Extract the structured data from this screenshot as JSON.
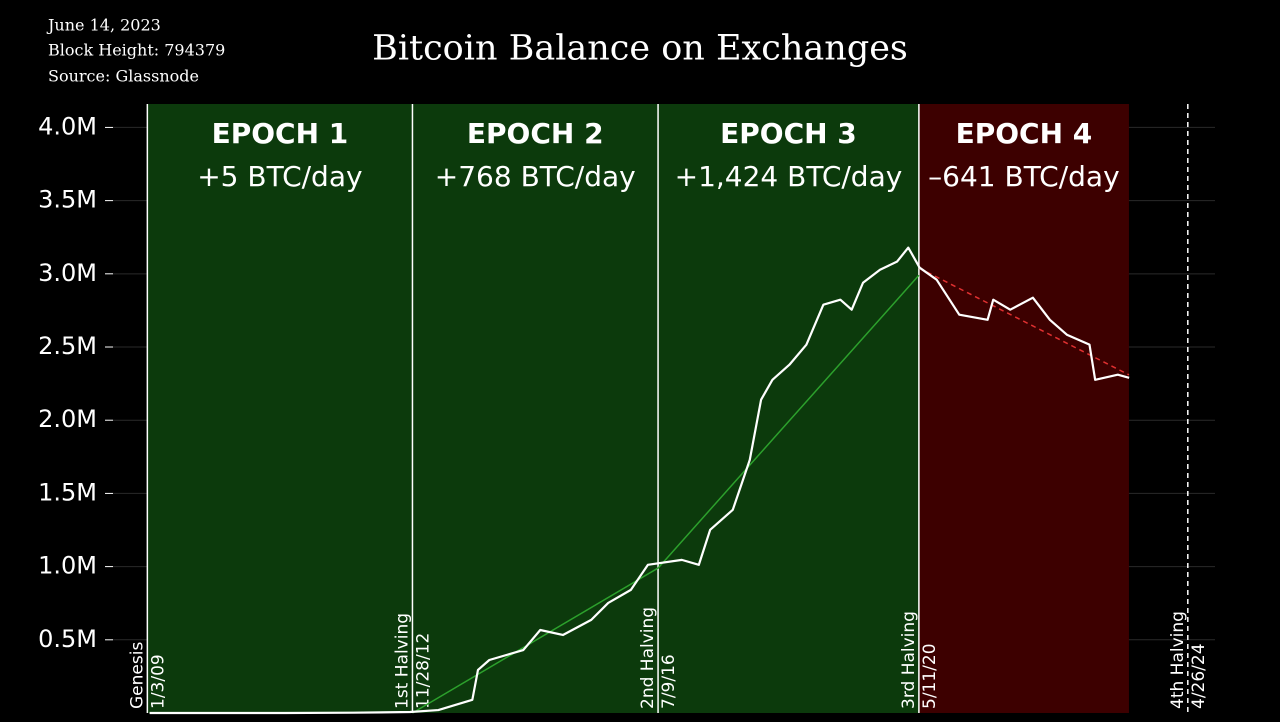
{
  "chart_data": {
    "type": "line",
    "title": "Bitcoin Balance on Exchanges",
    "notes": [
      "June 14, 2023",
      "Block Height: 794379",
      "Source: Glassnode"
    ],
    "xlim": [
      "2008-07-01",
      "2024-09-20"
    ],
    "ylim": [
      0,
      4160000
    ],
    "yticks": [
      {
        "value": 500000,
        "label": "0.5M"
      },
      {
        "value": 1000000,
        "label": "1.0M"
      },
      {
        "value": 1500000,
        "label": "1.5M"
      },
      {
        "value": 2000000,
        "label": "2.0M"
      },
      {
        "value": 2500000,
        "label": "2.5M"
      },
      {
        "value": 3000000,
        "label": "3.0M"
      },
      {
        "value": 3500000,
        "label": "3.5M"
      },
      {
        "value": 4000000,
        "label": "4.0M"
      }
    ],
    "grid": true,
    "epochs": [
      {
        "label": "EPOCH 1",
        "rate": "+5 BTC/day",
        "start": "2009-01-03",
        "end": "2012-11-28",
        "color": "#0c3a0c"
      },
      {
        "label": "EPOCH 2",
        "rate": "+768 BTC/day",
        "start": "2012-11-28",
        "end": "2016-07-09",
        "color": "#0c3a0c"
      },
      {
        "label": "EPOCH 3",
        "rate": "+1,424 BTC/day",
        "start": "2016-07-09",
        "end": "2020-05-11",
        "color": "#0c3a0c"
      },
      {
        "label": "EPOCH 4",
        "rate": "–641 BTC/day",
        "start": "2020-05-11",
        "end": "2023-06-14",
        "color": "#3d0000"
      }
    ],
    "events": [
      {
        "name": "Genesis",
        "date_label": "1/3/09",
        "date": "2009-01-03",
        "line_style": "solid"
      },
      {
        "name": "1st Halving",
        "date_label": "11/28/12",
        "date": "2012-11-28",
        "line_style": "solid"
      },
      {
        "name": "2nd Halving",
        "date_label": "7/9/16",
        "date": "2016-07-09",
        "line_style": "solid"
      },
      {
        "name": "3rd Halving",
        "date_label": "5/11/20",
        "date": "2020-05-11",
        "line_style": "solid"
      },
      {
        "name": "4th Halving",
        "date_label": "4/26/24",
        "date": "2024-04-26",
        "line_style": "dashed"
      }
    ],
    "series": [
      {
        "color": "#ffffff",
        "x": [
          "2009-01",
          "2010-01",
          "2011-01",
          "2012-01",
          "2012-11",
          "2013-04",
          "2013-10",
          "2013-11",
          "2014-01",
          "2014-07",
          "2014-10",
          "2015-02",
          "2015-07",
          "2015-10",
          "2016-02",
          "2016-05",
          "2016-11",
          "2017-02",
          "2017-04",
          "2017-08",
          "2017-11",
          "2018-01",
          "2018-03",
          "2018-06",
          "2018-09",
          "2018-12",
          "2019-03",
          "2019-05",
          "2019-07",
          "2019-10",
          "2020-01",
          "2020-03",
          "2020-05",
          "2020-08",
          "2020-12",
          "2021-05",
          "2021-06",
          "2021-09",
          "2022-01",
          "2022-04",
          "2022-07",
          "2022-11",
          "2022-12",
          "2023-04",
          "2023-06"
        ],
        "values": [
          0,
          0,
          0,
          2000,
          7000,
          20000,
          90000,
          294000,
          362000,
          430000,
          567000,
          533000,
          636000,
          752000,
          841000,
          1012000,
          1046000,
          1012000,
          1251000,
          1388000,
          1729000,
          2140000,
          2276000,
          2379000,
          2516000,
          2789000,
          2823000,
          2755000,
          2939000,
          3028000,
          3083000,
          3179000,
          3042000,
          2960000,
          2721000,
          2686000,
          2823000,
          2755000,
          2837000,
          2686000,
          2584000,
          2516000,
          2276000,
          2311000,
          2290000
        ]
      }
    ],
    "trends": [
      {
        "color": "#2ca02c",
        "line_style": "solid",
        "x": [
          "2012-11-28",
          "2016-07-09",
          "2020-05-11"
        ],
        "values": [
          0,
          990000,
          2990000
        ]
      },
      {
        "color": "#e03030",
        "line_style": "dashed",
        "x": [
          "2020-05-11",
          "2023-06-14"
        ],
        "values": [
          3040000,
          2310000
        ]
      }
    ]
  }
}
